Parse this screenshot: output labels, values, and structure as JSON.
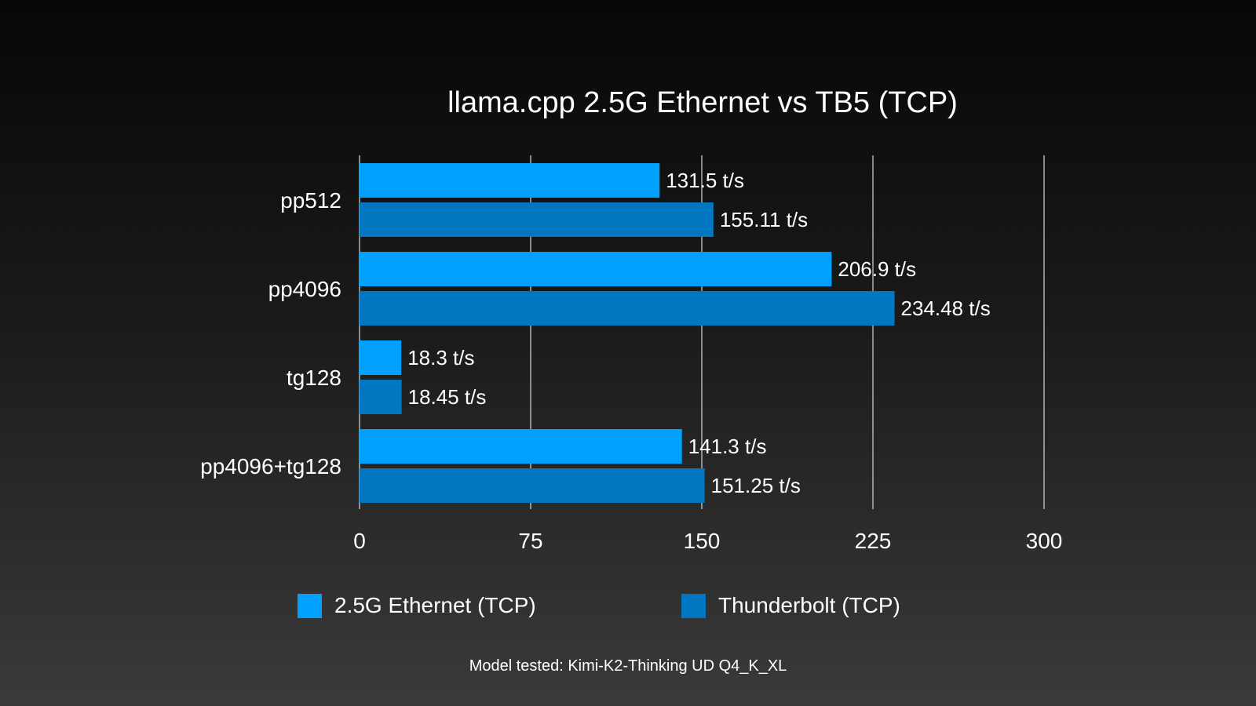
{
  "chart_data": {
    "type": "bar",
    "orientation": "horizontal",
    "title": "llama.cpp 2.5G Ethernet vs TB5 (TCP)",
    "categories": [
      "pp512",
      "pp4096",
      "tg128",
      "pp4096+tg128"
    ],
    "series": [
      {
        "name": "2.5G Ethernet (TCP)",
        "color": "#00a0ff",
        "values": [
          131.5,
          206.9,
          18.3,
          141.3
        ],
        "labels": [
          "131.5 t/s",
          "206.9 t/s",
          "18.3 t/s",
          "141.3 t/s"
        ]
      },
      {
        "name": "Thunderbolt (TCP)",
        "color": "#0077c0",
        "values": [
          155.11,
          234.48,
          18.45,
          151.25
        ],
        "labels": [
          "155.11 t/s",
          "234.48 t/s",
          "18.45 t/s",
          "151.25 t/s"
        ]
      }
    ],
    "xlim": [
      0,
      300
    ],
    "xticks": [
      "0",
      "75",
      "150",
      "225",
      "300"
    ],
    "grid": "vertical",
    "legend": "bottom",
    "footnote": "Model tested: Kimi-K2-Thinking UD Q4_K_XL"
  }
}
